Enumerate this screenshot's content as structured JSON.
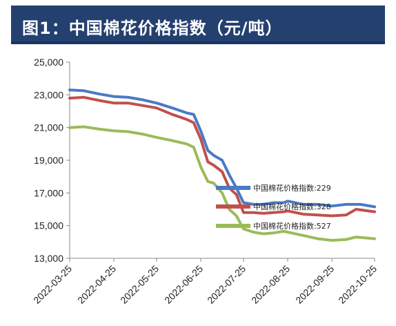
{
  "chart_data": {
    "type": "line",
    "title": "图1：中国棉花价格指数（元/吨）",
    "ylim": [
      13000,
      25000
    ],
    "yticks": [
      "13,000",
      "15,000",
      "17,000",
      "19,000",
      "21,000",
      "23,000",
      "25,000"
    ],
    "ytick_values": [
      13000,
      15000,
      17000,
      19000,
      21000,
      23000,
      25000
    ],
    "x_labels": [
      "2022-03-25",
      "2022-04-25",
      "2022-05-25",
      "2022-06-25",
      "2022-07-25",
      "2022-08-25",
      "2022-09-25",
      "2022-10-25"
    ],
    "x_start": "2022-03-25",
    "x_end": "2022-10-25",
    "grid": false,
    "legend_placement": "right-center",
    "series": [
      {
        "name": "中国棉花价格指数:229",
        "color": "#4a7ac5",
        "points": [
          [
            "2022-03-25",
            23300
          ],
          [
            "2022-04-04",
            23250
          ],
          [
            "2022-04-15",
            23050
          ],
          [
            "2022-04-25",
            22900
          ],
          [
            "2022-05-05",
            22850
          ],
          [
            "2022-05-15",
            22700
          ],
          [
            "2022-05-25",
            22500
          ],
          [
            "2022-06-05",
            22200
          ],
          [
            "2022-06-15",
            21900
          ],
          [
            "2022-06-20",
            21800
          ],
          [
            "2022-06-25",
            20800
          ],
          [
            "2022-06-30",
            19600
          ],
          [
            "2022-07-04",
            19300
          ],
          [
            "2022-07-10",
            19000
          ],
          [
            "2022-07-15",
            18100
          ],
          [
            "2022-07-20",
            17300
          ],
          [
            "2022-07-25",
            16400
          ],
          [
            "2022-08-01",
            16300
          ],
          [
            "2022-08-08",
            16300
          ],
          [
            "2022-08-15",
            16400
          ],
          [
            "2022-08-22",
            16400
          ],
          [
            "2022-08-25",
            16500
          ],
          [
            "2022-09-05",
            16300
          ],
          [
            "2022-09-15",
            16300
          ],
          [
            "2022-09-25",
            16200
          ],
          [
            "2022-10-05",
            16300
          ],
          [
            "2022-10-15",
            16300
          ],
          [
            "2022-10-25",
            16150
          ]
        ]
      },
      {
        "name": "中国棉花价格指数:328",
        "color": "#c0504d",
        "points": [
          [
            "2022-03-25",
            22800
          ],
          [
            "2022-04-04",
            22850
          ],
          [
            "2022-04-15",
            22650
          ],
          [
            "2022-04-25",
            22500
          ],
          [
            "2022-05-05",
            22500
          ],
          [
            "2022-05-15",
            22350
          ],
          [
            "2022-05-25",
            22200
          ],
          [
            "2022-06-05",
            21800
          ],
          [
            "2022-06-15",
            21500
          ],
          [
            "2022-06-20",
            21300
          ],
          [
            "2022-06-25",
            20300
          ],
          [
            "2022-06-30",
            18900
          ],
          [
            "2022-07-04",
            18700
          ],
          [
            "2022-07-10",
            18300
          ],
          [
            "2022-07-15",
            17300
          ],
          [
            "2022-07-20",
            16900
          ],
          [
            "2022-07-25",
            15800
          ],
          [
            "2022-08-01",
            15800
          ],
          [
            "2022-08-08",
            15750
          ],
          [
            "2022-08-15",
            15800
          ],
          [
            "2022-08-22",
            15850
          ],
          [
            "2022-08-25",
            15900
          ],
          [
            "2022-09-05",
            15700
          ],
          [
            "2022-09-15",
            15650
          ],
          [
            "2022-09-25",
            15600
          ],
          [
            "2022-10-05",
            15650
          ],
          [
            "2022-10-12",
            16000
          ],
          [
            "2022-10-25",
            15850
          ]
        ]
      },
      {
        "name": "中国棉花价格指数:527",
        "color": "#9bbb59",
        "points": [
          [
            "2022-03-25",
            21000
          ],
          [
            "2022-04-04",
            21050
          ],
          [
            "2022-04-15",
            20900
          ],
          [
            "2022-04-25",
            20800
          ],
          [
            "2022-05-05",
            20750
          ],
          [
            "2022-05-15",
            20600
          ],
          [
            "2022-05-25",
            20400
          ],
          [
            "2022-06-05",
            20200
          ],
          [
            "2022-06-15",
            20000
          ],
          [
            "2022-06-20",
            19800
          ],
          [
            "2022-06-25",
            18600
          ],
          [
            "2022-06-30",
            17700
          ],
          [
            "2022-07-04",
            17600
          ],
          [
            "2022-07-10",
            17000
          ],
          [
            "2022-07-15",
            16000
          ],
          [
            "2022-07-20",
            15600
          ],
          [
            "2022-07-25",
            14800
          ],
          [
            "2022-08-01",
            14600
          ],
          [
            "2022-08-08",
            14500
          ],
          [
            "2022-08-15",
            14550
          ],
          [
            "2022-08-22",
            14650
          ],
          [
            "2022-08-25",
            14600
          ],
          [
            "2022-09-05",
            14400
          ],
          [
            "2022-09-15",
            14200
          ],
          [
            "2022-09-25",
            14100
          ],
          [
            "2022-10-05",
            14150
          ],
          [
            "2022-10-12",
            14300
          ],
          [
            "2022-10-25",
            14200
          ]
        ]
      }
    ]
  }
}
